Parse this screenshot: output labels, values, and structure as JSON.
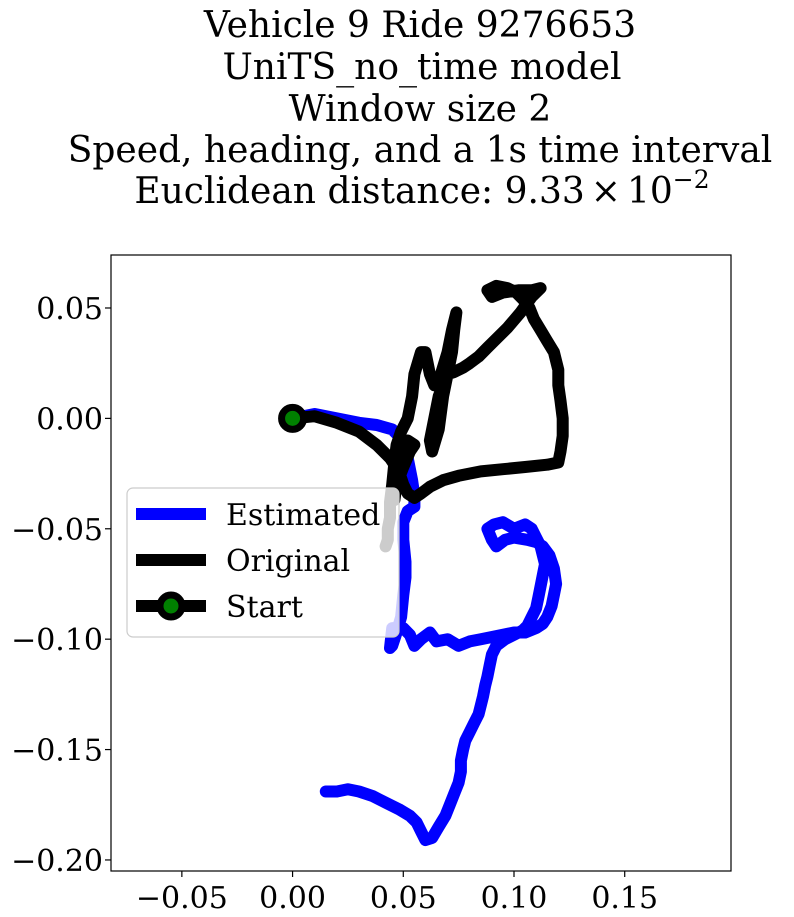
{
  "chart_data": {
    "type": "line",
    "title_lines": [
      "Vehicle 9 Ride 9276653",
      "UniTS_no_time model",
      "Window size 2",
      "Speed, heading, and a 1s time interval"
    ],
    "title_distance_prefix": "Euclidean distance: ",
    "title_distance_mantissa": "9.33",
    "title_distance_times": "×",
    "title_distance_base": "10",
    "title_distance_exponent": "−2",
    "xlabel": "",
    "ylabel": "",
    "xlim": [
      -0.082,
      0.198
    ],
    "ylim": [
      -0.205,
      0.074
    ],
    "xticks": [
      {
        "value": -0.05,
        "label": "−0.05"
      },
      {
        "value": 0.0,
        "label": "0.00"
      },
      {
        "value": 0.05,
        "label": "0.05"
      },
      {
        "value": 0.1,
        "label": "0.10"
      },
      {
        "value": 0.15,
        "label": "0.15"
      }
    ],
    "yticks": [
      {
        "value": 0.05,
        "label": "0.05"
      },
      {
        "value": 0.0,
        "label": "0.00"
      },
      {
        "value": -0.05,
        "label": "−0.05"
      },
      {
        "value": -0.1,
        "label": "−0.10"
      },
      {
        "value": -0.15,
        "label": "−0.15"
      },
      {
        "value": -0.2,
        "label": "−0.20"
      }
    ],
    "grid": false,
    "legend_position": "center-left",
    "series": [
      {
        "name": "Estimated",
        "color": "#0000ff",
        "points": [
          [
            0.0,
            0.0
          ],
          [
            0.01,
            0.002
          ],
          [
            0.02,
            0.0
          ],
          [
            0.03,
            -0.002
          ],
          [
            0.038,
            -0.003
          ],
          [
            0.045,
            -0.005
          ],
          [
            0.05,
            -0.01
          ],
          [
            0.052,
            -0.018
          ],
          [
            0.054,
            -0.028
          ],
          [
            0.055,
            -0.035
          ],
          [
            0.055,
            -0.04
          ],
          [
            0.052,
            -0.042
          ],
          [
            0.05,
            -0.047
          ],
          [
            0.05,
            -0.055
          ],
          [
            0.051,
            -0.065
          ],
          [
            0.051,
            -0.072
          ],
          [
            0.05,
            -0.08
          ],
          [
            0.049,
            -0.09
          ],
          [
            0.047,
            -0.097
          ],
          [
            0.045,
            -0.103
          ],
          [
            0.044,
            -0.104
          ],
          [
            0.045,
            -0.095
          ],
          [
            0.05,
            -0.095
          ],
          [
            0.053,
            -0.098
          ],
          [
            0.055,
            -0.103
          ],
          [
            0.058,
            -0.1
          ],
          [
            0.062,
            -0.097
          ],
          [
            0.065,
            -0.101
          ],
          [
            0.07,
            -0.1
          ],
          [
            0.075,
            -0.103
          ],
          [
            0.08,
            -0.101
          ],
          [
            0.085,
            -0.1
          ],
          [
            0.09,
            -0.099
          ],
          [
            0.095,
            -0.098
          ],
          [
            0.1,
            -0.097
          ],
          [
            0.105,
            -0.097
          ],
          [
            0.11,
            -0.095
          ],
          [
            0.113,
            -0.093
          ],
          [
            0.115,
            -0.09
          ],
          [
            0.117,
            -0.085
          ],
          [
            0.118,
            -0.08
          ],
          [
            0.119,
            -0.075
          ],
          [
            0.118,
            -0.068
          ],
          [
            0.116,
            -0.062
          ],
          [
            0.113,
            -0.058
          ],
          [
            0.11,
            -0.056
          ],
          [
            0.106,
            -0.055
          ],
          [
            0.1,
            -0.054
          ],
          [
            0.096,
            -0.055
          ],
          [
            0.092,
            -0.058
          ],
          [
            0.09,
            -0.055
          ],
          [
            0.088,
            -0.05
          ],
          [
            0.091,
            -0.048
          ],
          [
            0.095,
            -0.047
          ],
          [
            0.1,
            -0.05
          ],
          [
            0.105,
            -0.048
          ],
          [
            0.108,
            -0.05
          ],
          [
            0.11,
            -0.054
          ],
          [
            0.112,
            -0.058
          ],
          [
            0.113,
            -0.062
          ],
          [
            0.114,
            -0.066
          ],
          [
            0.113,
            -0.071
          ],
          [
            0.112,
            -0.076
          ],
          [
            0.111,
            -0.081
          ],
          [
            0.11,
            -0.086
          ],
          [
            0.108,
            -0.09
          ],
          [
            0.106,
            -0.094
          ],
          [
            0.104,
            -0.096
          ],
          [
            0.1,
            -0.098
          ],
          [
            0.096,
            -0.1
          ],
          [
            0.092,
            -0.103
          ],
          [
            0.09,
            -0.107
          ],
          [
            0.089,
            -0.112
          ],
          [
            0.088,
            -0.117
          ],
          [
            0.087,
            -0.121
          ],
          [
            0.086,
            -0.126
          ],
          [
            0.085,
            -0.13
          ],
          [
            0.084,
            -0.134
          ],
          [
            0.082,
            -0.138
          ],
          [
            0.08,
            -0.142
          ],
          [
            0.078,
            -0.146
          ],
          [
            0.077,
            -0.15
          ],
          [
            0.076,
            -0.155
          ],
          [
            0.076,
            -0.16
          ],
          [
            0.075,
            -0.165
          ],
          [
            0.073,
            -0.17
          ],
          [
            0.071,
            -0.175
          ],
          [
            0.069,
            -0.18
          ],
          [
            0.066,
            -0.185
          ],
          [
            0.063,
            -0.19
          ],
          [
            0.06,
            -0.191
          ],
          [
            0.058,
            -0.187
          ],
          [
            0.056,
            -0.183
          ],
          [
            0.053,
            -0.18
          ],
          [
            0.048,
            -0.177
          ],
          [
            0.042,
            -0.174
          ],
          [
            0.036,
            -0.171
          ],
          [
            0.03,
            -0.169
          ],
          [
            0.025,
            -0.168
          ],
          [
            0.02,
            -0.169
          ],
          [
            0.015,
            -0.169
          ]
        ]
      },
      {
        "name": "Original",
        "color": "#000000",
        "points": [
          [
            0.0,
            0.0
          ],
          [
            0.01,
            0.001
          ],
          [
            0.02,
            -0.002
          ],
          [
            0.03,
            -0.006
          ],
          [
            0.038,
            -0.012
          ],
          [
            0.044,
            -0.018
          ],
          [
            0.048,
            -0.024
          ],
          [
            0.05,
            -0.03
          ],
          [
            0.052,
            -0.034
          ],
          [
            0.055,
            -0.036
          ],
          [
            0.058,
            -0.034
          ],
          [
            0.062,
            -0.031
          ],
          [
            0.068,
            -0.028
          ],
          [
            0.075,
            -0.026
          ],
          [
            0.085,
            -0.024
          ],
          [
            0.095,
            -0.023
          ],
          [
            0.105,
            -0.022
          ],
          [
            0.115,
            -0.021
          ],
          [
            0.12,
            -0.02
          ],
          [
            0.121,
            -0.015
          ],
          [
            0.122,
            -0.008
          ],
          [
            0.122,
            0.0
          ],
          [
            0.121,
            0.008
          ],
          [
            0.12,
            0.015
          ],
          [
            0.12,
            0.022
          ],
          [
            0.118,
            0.03
          ],
          [
            0.115,
            0.035
          ],
          [
            0.112,
            0.04
          ],
          [
            0.109,
            0.045
          ],
          [
            0.107,
            0.05
          ],
          [
            0.104,
            0.054
          ],
          [
            0.101,
            0.057
          ],
          [
            0.097,
            0.059
          ],
          [
            0.092,
            0.06
          ],
          [
            0.088,
            0.058
          ],
          [
            0.09,
            0.055
          ],
          [
            0.095,
            0.057
          ],
          [
            0.102,
            0.058
          ],
          [
            0.108,
            0.058
          ],
          [
            0.112,
            0.059
          ],
          [
            0.108,
            0.055
          ],
          [
            0.103,
            0.048
          ],
          [
            0.097,
            0.041
          ],
          [
            0.092,
            0.036
          ],
          [
            0.088,
            0.032
          ],
          [
            0.084,
            0.028
          ],
          [
            0.08,
            0.025
          ],
          [
            0.077,
            0.023
          ],
          [
            0.073,
            0.021
          ],
          [
            0.07,
            0.02
          ],
          [
            0.066,
            0.01
          ],
          [
            0.064,
            0.0
          ],
          [
            0.062,
            -0.01
          ],
          [
            0.063,
            -0.015
          ],
          [
            0.066,
            -0.005
          ],
          [
            0.068,
            0.01
          ],
          [
            0.07,
            0.02
          ],
          [
            0.072,
            0.03
          ],
          [
            0.073,
            0.04
          ],
          [
            0.074,
            0.048
          ],
          [
            0.072,
            0.04
          ],
          [
            0.07,
            0.03
          ],
          [
            0.067,
            0.02
          ],
          [
            0.064,
            0.015
          ],
          [
            0.062,
            0.02
          ],
          [
            0.06,
            0.03
          ],
          [
            0.058,
            0.03
          ],
          [
            0.055,
            0.02
          ],
          [
            0.054,
            0.01
          ],
          [
            0.052,
            0.0
          ],
          [
            0.049,
            -0.006
          ],
          [
            0.047,
            -0.012
          ],
          [
            0.046,
            -0.02
          ],
          [
            0.045,
            -0.03
          ],
          [
            0.046,
            -0.037
          ],
          [
            0.047,
            -0.03
          ],
          [
            0.05,
            -0.022
          ],
          [
            0.053,
            -0.015
          ],
          [
            0.055,
            -0.012
          ],
          [
            0.052,
            -0.01
          ],
          [
            0.05,
            -0.015
          ],
          [
            0.048,
            -0.02
          ],
          [
            0.046,
            -0.024
          ],
          [
            0.045,
            -0.03
          ],
          [
            0.044,
            -0.038
          ],
          [
            0.044,
            -0.045
          ],
          [
            0.043,
            -0.05
          ],
          [
            0.043,
            -0.055
          ],
          [
            0.042,
            -0.058
          ]
        ]
      }
    ],
    "start_point": {
      "name": "Start",
      "x": 0.0,
      "y": 0.0,
      "marker_color": "#000000",
      "face_color": "#008000"
    }
  }
}
